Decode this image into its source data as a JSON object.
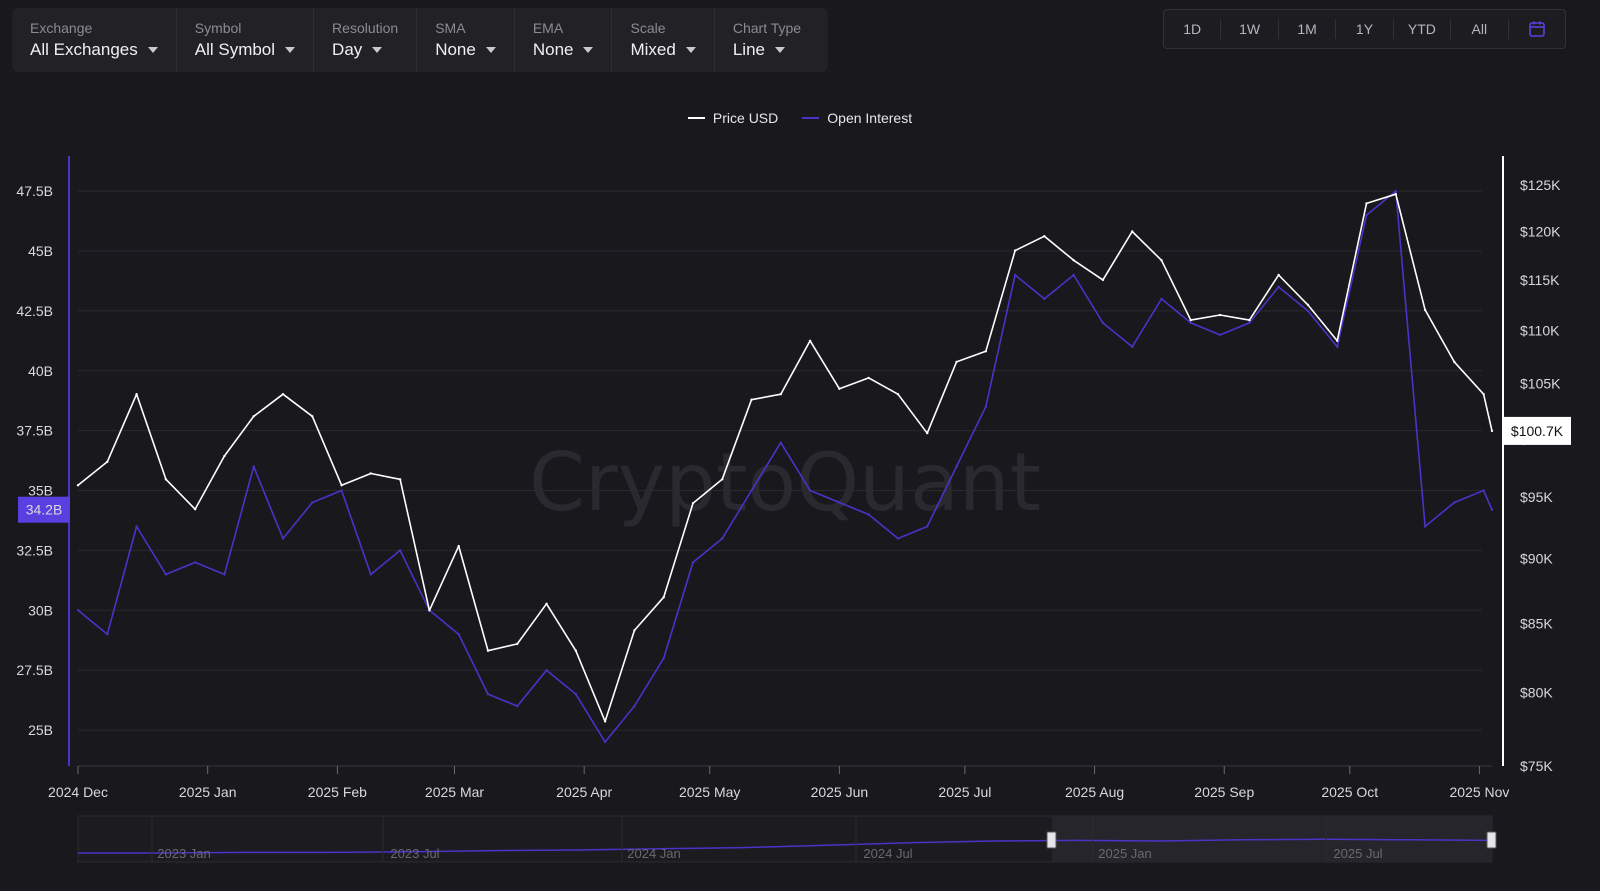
{
  "toolbar": {
    "controls": [
      {
        "label": "Exchange",
        "value": "All Exchanges"
      },
      {
        "label": "Symbol",
        "value": "All Symbol"
      },
      {
        "label": "Resolution",
        "value": "Day"
      },
      {
        "label": "SMA",
        "value": "None"
      },
      {
        "label": "EMA",
        "value": "None"
      },
      {
        "label": "Scale",
        "value": "Mixed"
      },
      {
        "label": "Chart Type",
        "value": "Line"
      }
    ]
  },
  "ranges": {
    "buttons": [
      "1D",
      "1W",
      "1M",
      "1Y",
      "YTD",
      "All"
    ],
    "calendar_icon": "calendar-icon"
  },
  "watermark": "CryptoQuant",
  "colors": {
    "price": "#ffffff",
    "open_interest": "#4b32c8",
    "accent": "#5a3fe0"
  },
  "chart_data": {
    "type": "line",
    "x": [
      "2024-12-01",
      "2024-12-08",
      "2024-12-15",
      "2024-12-22",
      "2024-12-29",
      "2025-01-05",
      "2025-01-12",
      "2025-01-19",
      "2025-01-26",
      "2025-02-02",
      "2025-02-09",
      "2025-02-16",
      "2025-02-23",
      "2025-03-02",
      "2025-03-09",
      "2025-03-16",
      "2025-03-23",
      "2025-03-30",
      "2025-04-06",
      "2025-04-13",
      "2025-04-20",
      "2025-04-27",
      "2025-05-04",
      "2025-05-11",
      "2025-05-18",
      "2025-05-25",
      "2025-06-01",
      "2025-06-08",
      "2025-06-15",
      "2025-06-22",
      "2025-06-29",
      "2025-07-06",
      "2025-07-13",
      "2025-07-20",
      "2025-07-27",
      "2025-08-03",
      "2025-08-10",
      "2025-08-17",
      "2025-08-24",
      "2025-08-31",
      "2025-09-07",
      "2025-09-14",
      "2025-09-21",
      "2025-09-28",
      "2025-10-05",
      "2025-10-12",
      "2025-10-19",
      "2025-10-26",
      "2025-11-02",
      "2025-11-04"
    ],
    "series": [
      {
        "name": "Price USD",
        "axis": "right",
        "values": [
          96000,
          98000,
          104000,
          96500,
          94000,
          98500,
          102000,
          104000,
          102000,
          96000,
          97000,
          96500,
          86000,
          91000,
          83000,
          83500,
          86500,
          83000,
          78000,
          84500,
          87000,
          94500,
          96500,
          103500,
          104000,
          109000,
          104500,
          105500,
          104000,
          100500,
          107000,
          108000,
          118000,
          119500,
          117000,
          115000,
          120000,
          117000,
          111000,
          111500,
          111000,
          115500,
          112500,
          109000,
          123000,
          124000,
          112000,
          107000,
          104000,
          100700
        ]
      },
      {
        "name": "Open Interest",
        "axis": "left",
        "values": [
          30000000000,
          29000000000,
          33500000000,
          31500000000,
          32000000000,
          31500000000,
          36000000000,
          33000000000,
          34500000000,
          35000000000,
          31500000000,
          32500000000,
          30000000000,
          29000000000,
          26500000000,
          26000000000,
          27500000000,
          26500000000,
          24500000000,
          26000000000,
          28000000000,
          32000000000,
          33000000000,
          35000000000,
          37000000000,
          35000000000,
          34500000000,
          34000000000,
          33000000000,
          33500000000,
          36000000000,
          38500000000,
          44000000000,
          43000000000,
          44000000000,
          42000000000,
          41000000000,
          43000000000,
          42000000000,
          41500000000,
          42000000000,
          43500000000,
          42500000000,
          41000000000,
          46500000000,
          47500000000,
          33500000000,
          34500000000,
          35000000000,
          34200000000
        ]
      }
    ],
    "x_ticks": [
      "2024 Dec",
      "2025 Jan",
      "2025 Feb",
      "2025 Mar",
      "2025 Apr",
      "2025 May",
      "2025 Jun",
      "2025 Jul",
      "2025 Aug",
      "2025 Sep",
      "2025 Oct",
      "2025 Nov"
    ],
    "left_ticks": [
      "47.5B",
      "45B",
      "42.5B",
      "40B",
      "37.5B",
      "35B",
      "32.5B",
      "30B",
      "27.5B",
      "25B"
    ],
    "left_tick_values": [
      47.5,
      45,
      42.5,
      40,
      37.5,
      35,
      32.5,
      30,
      27.5,
      25
    ],
    "right_ticks": [
      "$125K",
      "$120K",
      "$115K",
      "$110K",
      "$105K",
      "$100K",
      "$95K",
      "$90K",
      "$85K",
      "$80K",
      "$75K"
    ],
    "right_tick_values": [
      125000,
      120000,
      115000,
      110000,
      105000,
      100000,
      95000,
      90000,
      85000,
      80000,
      75000
    ],
    "ylim_left": [
      23.5,
      48.8
    ],
    "ylim_right": [
      75000,
      126000
    ],
    "last_price_label": "$100.7K",
    "last_oi_label": "34.2B",
    "right_axis_scale": "log",
    "grid": true,
    "legend_position": "top-center",
    "navigator": {
      "labels": [
        "2023 Jan",
        "2023 Jul",
        "2024 Jan",
        "2024 Jul",
        "2025 Jan",
        "2025 Jul"
      ],
      "values": [
        0.05,
        0.05,
        0.06,
        0.06,
        0.07,
        0.09,
        0.1,
        0.12,
        0.14,
        0.18,
        0.22,
        0.25,
        0.26,
        0.25,
        0.27,
        0.28,
        0.27,
        0.26
      ]
    }
  }
}
